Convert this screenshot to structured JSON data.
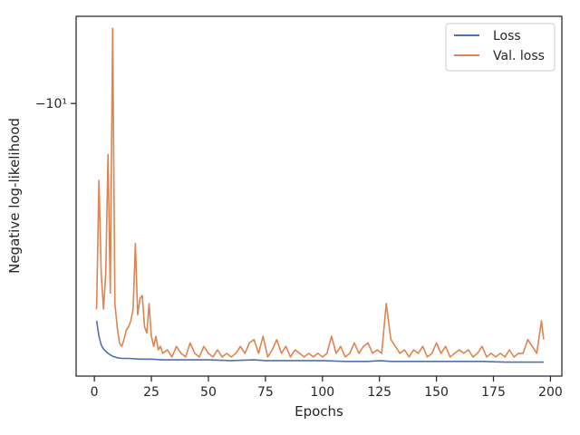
{
  "chart_data": {
    "type": "line",
    "title": "",
    "xlabel": "Epochs",
    "ylabel": "Negative log-likelihood",
    "xlim": [
      -8,
      205
    ],
    "ylim": [
      -2.3,
      -16
    ],
    "y_scale": "symlog",
    "x_ticks": [
      0,
      25,
      50,
      75,
      100,
      125,
      150,
      175,
      200
    ],
    "x_tick_labels": [
      "0",
      "25",
      "50",
      "75",
      "100",
      "125",
      "150",
      "175",
      "200"
    ],
    "y_ticks": [
      -10
    ],
    "y_tick_labels": [
      "−10¹"
    ],
    "legend_position": "top-right",
    "grid": false,
    "series": [
      {
        "name": "Loss",
        "color": "#4c72b0",
        "x": [
          1,
          2,
          3,
          4,
          5,
          6,
          7,
          8,
          9,
          10,
          12,
          15,
          20,
          25,
          30,
          40,
          50,
          60,
          70,
          75,
          80,
          90,
          100,
          110,
          120,
          125,
          130,
          140,
          150,
          160,
          170,
          180,
          190,
          197
        ],
        "y": [
          -3.1,
          -2.85,
          -2.72,
          -2.66,
          -2.63,
          -2.6,
          -2.58,
          -2.56,
          -2.55,
          -2.54,
          -2.53,
          -2.53,
          -2.52,
          -2.52,
          -2.51,
          -2.51,
          -2.51,
          -2.5,
          -2.51,
          -2.5,
          -2.5,
          -2.5,
          -2.5,
          -2.49,
          -2.49,
          -2.5,
          -2.49,
          -2.49,
          -2.49,
          -2.49,
          -2.49,
          -2.48,
          -2.48,
          -2.48
        ]
      },
      {
        "name": "Val. loss",
        "color": "#dd8452",
        "x": [
          1,
          2,
          3,
          4,
          5,
          6,
          7,
          8,
          9,
          10,
          11,
          12,
          13,
          14,
          15,
          16,
          17,
          18,
          19,
          20,
          21,
          22,
          23,
          24,
          25,
          26,
          27,
          28,
          29,
          30,
          32,
          34,
          36,
          38,
          40,
          42,
          44,
          46,
          48,
          50,
          52,
          54,
          56,
          58,
          60,
          62,
          64,
          66,
          68,
          70,
          72,
          74,
          76,
          78,
          80,
          82,
          84,
          86,
          88,
          90,
          92,
          94,
          96,
          98,
          100,
          102,
          104,
          106,
          108,
          110,
          112,
          114,
          116,
          118,
          120,
          122,
          124,
          126,
          128,
          130,
          132,
          134,
          136,
          138,
          140,
          142,
          144,
          146,
          148,
          150,
          152,
          154,
          156,
          158,
          160,
          162,
          164,
          166,
          168,
          170,
          172,
          174,
          176,
          178,
          180,
          182,
          184,
          186,
          188,
          190,
          192,
          194,
          196,
          197
        ],
        "y": [
          -3.3,
          -6.6,
          -4.0,
          -3.3,
          -4.0,
          -7.6,
          -3.6,
          -15.0,
          -3.4,
          -3.0,
          -2.75,
          -2.7,
          -2.8,
          -2.95,
          -3.0,
          -3.1,
          -3.3,
          -4.7,
          -3.2,
          -3.5,
          -3.55,
          -3.0,
          -2.9,
          -3.4,
          -2.85,
          -2.7,
          -2.85,
          -2.65,
          -2.7,
          -2.6,
          -2.65,
          -2.55,
          -2.7,
          -2.6,
          -2.55,
          -2.75,
          -2.6,
          -2.55,
          -2.7,
          -2.6,
          -2.55,
          -2.65,
          -2.55,
          -2.6,
          -2.55,
          -2.6,
          -2.7,
          -2.6,
          -2.75,
          -2.8,
          -2.6,
          -2.85,
          -2.55,
          -2.65,
          -2.8,
          -2.6,
          -2.7,
          -2.55,
          -2.65,
          -2.6,
          -2.55,
          -2.6,
          -2.55,
          -2.6,
          -2.55,
          -2.6,
          -2.85,
          -2.6,
          -2.7,
          -2.55,
          -2.6,
          -2.75,
          -2.6,
          -2.7,
          -2.75,
          -2.6,
          -2.65,
          -2.6,
          -3.4,
          -2.8,
          -2.7,
          -2.6,
          -2.65,
          -2.55,
          -2.65,
          -2.6,
          -2.7,
          -2.55,
          -2.6,
          -2.75,
          -2.6,
          -2.7,
          -2.55,
          -2.6,
          -2.65,
          -2.6,
          -2.65,
          -2.55,
          -2.6,
          -2.7,
          -2.55,
          -2.6,
          -2.55,
          -2.6,
          -2.55,
          -2.65,
          -2.55,
          -2.6,
          -2.6,
          -2.8,
          -2.7,
          -2.6,
          -3.1,
          -2.8
        ]
      }
    ]
  }
}
